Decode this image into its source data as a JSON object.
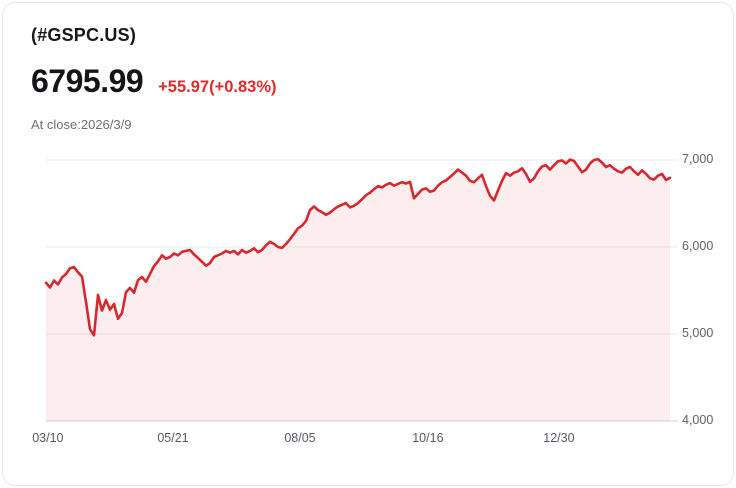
{
  "header": {
    "symbol": "(#GSPC.US)",
    "price": "6795.99",
    "change": "+55.97(+0.83%)",
    "as_of": "At close:2026/3/9"
  },
  "colors": {
    "change_text": "#e22a2a",
    "line": "#d7282f",
    "area_fill": "rgba(215,40,47,0.08)",
    "grid": "#e9e9e9",
    "axis": "#d2d2d2",
    "label_gray": "#5c6067"
  },
  "chart_data": {
    "type": "area",
    "title": "(#GSPC.US) one-year price history",
    "ylabel": "",
    "xlabel": "",
    "ylim": [
      4000,
      7138
    ],
    "grid": "horizontal",
    "legend": "none",
    "close_value": 6795.99,
    "y_ticks": [
      {
        "label": "7,000",
        "value": 7000
      },
      {
        "label": "6,000",
        "value": 6000
      },
      {
        "label": "5,000",
        "value": 5000
      },
      {
        "label": "4,000",
        "value": 4000
      }
    ],
    "x_ticks": [
      {
        "label": "03/10",
        "pos": 0.003
      },
      {
        "label": "05/21",
        "pos": 0.2035
      },
      {
        "label": "08/05",
        "pos": 0.407
      },
      {
        "label": "10/16",
        "pos": 0.612
      },
      {
        "label": "12/30",
        "pos": 0.822
      }
    ],
    "values": [
      5590,
      5535,
      5615,
      5570,
      5650,
      5690,
      5755,
      5770,
      5710,
      5660,
      5370,
      5055,
      4985,
      5450,
      5270,
      5390,
      5280,
      5345,
      5175,
      5240,
      5480,
      5530,
      5475,
      5620,
      5655,
      5600,
      5690,
      5780,
      5835,
      5905,
      5865,
      5885,
      5925,
      5905,
      5945,
      5955,
      5965,
      5915,
      5875,
      5830,
      5785,
      5815,
      5885,
      5905,
      5925,
      5955,
      5935,
      5955,
      5915,
      5965,
      5935,
      5955,
      5985,
      5940,
      5965,
      6020,
      6060,
      6035,
      6000,
      5990,
      6035,
      6090,
      6150,
      6215,
      6245,
      6300,
      6425,
      6465,
      6425,
      6400,
      6370,
      6395,
      6435,
      6465,
      6485,
      6505,
      6455,
      6475,
      6505,
      6550,
      6595,
      6625,
      6665,
      6700,
      6685,
      6715,
      6735,
      6705,
      6725,
      6745,
      6730,
      6750,
      6560,
      6610,
      6660,
      6675,
      6635,
      6650,
      6705,
      6745,
      6765,
      6805,
      6845,
      6890,
      6855,
      6820,
      6760,
      6745,
      6790,
      6830,
      6700,
      6590,
      6535,
      6650,
      6760,
      6850,
      6820,
      6855,
      6870,
      6905,
      6840,
      6750,
      6790,
      6870,
      6925,
      6940,
      6890,
      6940,
      6985,
      6995,
      6960,
      7005,
      6990,
      6925,
      6860,
      6890,
      6960,
      7000,
      7010,
      6970,
      6920,
      6940,
      6900,
      6870,
      6855,
      6900,
      6920,
      6870,
      6830,
      6880,
      6840,
      6790,
      6775,
      6820,
      6840,
      6770,
      6796
    ]
  }
}
